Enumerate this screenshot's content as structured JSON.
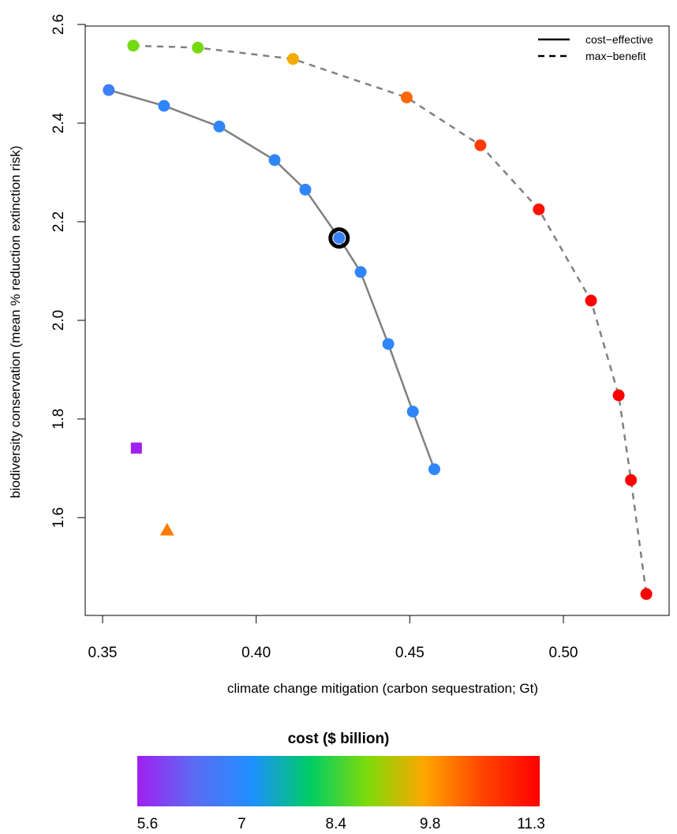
{
  "chart_data": {
    "type": "scatter",
    "xlabel": "climate change mitigation (carbon sequestration; Gt)",
    "ylabel": "biodiversity conservation (mean % reduction extinction risk)",
    "xlim": [
      0.345,
      0.53
    ],
    "ylim": [
      1.41,
      2.6
    ],
    "x_ticks": [
      0.35,
      0.4,
      0.45,
      0.5
    ],
    "x_tick_labels": [
      "0.35",
      "0.40",
      "0.45",
      "0.50"
    ],
    "y_ticks": [
      1.6,
      1.8,
      2.0,
      2.2,
      2.4,
      2.6
    ],
    "y_tick_labels": [
      "1.6",
      "1.8",
      "2.0",
      "2.2",
      "2.4",
      "2.6"
    ],
    "grid": false,
    "legend_position": "top-right",
    "series": [
      {
        "name": "cost−effective",
        "line": "solid",
        "line_color": "#808080",
        "points": [
          {
            "x": 0.352,
            "y": 2.467,
            "cost": 6.8
          },
          {
            "x": 0.37,
            "y": 2.435,
            "cost": 7.0
          },
          {
            "x": 0.388,
            "y": 2.393,
            "cost": 7.0
          },
          {
            "x": 0.406,
            "y": 2.325,
            "cost": 7.0
          },
          {
            "x": 0.416,
            "y": 2.265,
            "cost": 7.0
          },
          {
            "x": 0.427,
            "y": 2.167,
            "cost": 6.9,
            "highlighted": true
          },
          {
            "x": 0.434,
            "y": 2.098,
            "cost": 7.0
          },
          {
            "x": 0.443,
            "y": 1.952,
            "cost": 7.0
          },
          {
            "x": 0.451,
            "y": 1.815,
            "cost": 7.0
          },
          {
            "x": 0.458,
            "y": 1.698,
            "cost": 7.0
          }
        ]
      },
      {
        "name": "max−benefit",
        "line": "dashed",
        "line_color": "#808080",
        "points": [
          {
            "x": 0.36,
            "y": 2.557,
            "cost": 8.8
          },
          {
            "x": 0.381,
            "y": 2.553,
            "cost": 8.8
          },
          {
            "x": 0.412,
            "y": 2.53,
            "cost": 9.6
          },
          {
            "x": 0.449,
            "y": 2.452,
            "cost": 10.2
          },
          {
            "x": 0.473,
            "y": 2.355,
            "cost": 10.6
          },
          {
            "x": 0.492,
            "y": 2.225,
            "cost": 11.1
          },
          {
            "x": 0.509,
            "y": 2.04,
            "cost": 11.3
          },
          {
            "x": 0.518,
            "y": 1.848,
            "cost": 11.3
          },
          {
            "x": 0.522,
            "y": 1.676,
            "cost": 11.3
          },
          {
            "x": 0.527,
            "y": 1.445,
            "cost": 11.3
          }
        ]
      }
    ],
    "extra_points": [
      {
        "shape": "square",
        "x": 0.361,
        "y": 1.741,
        "cost": 5.6
      },
      {
        "shape": "triangle",
        "x": 0.371,
        "y": 1.575,
        "cost": 10.0
      }
    ],
    "colorbar": {
      "title": "cost ($ billion)",
      "min": 5.6,
      "max": 11.3,
      "tick_values": [
        5.6,
        7.0,
        8.4,
        9.8,
        11.3
      ],
      "tick_labels": [
        "5.6",
        "7",
        "8.4",
        "9.8",
        "11.3"
      ],
      "colors": [
        "#a020f0",
        "#5b6cf2",
        "#1e90ff",
        "#00cc66",
        "#7ddb0a",
        "#ffa500",
        "#ff4500",
        "#ff0000"
      ]
    }
  }
}
